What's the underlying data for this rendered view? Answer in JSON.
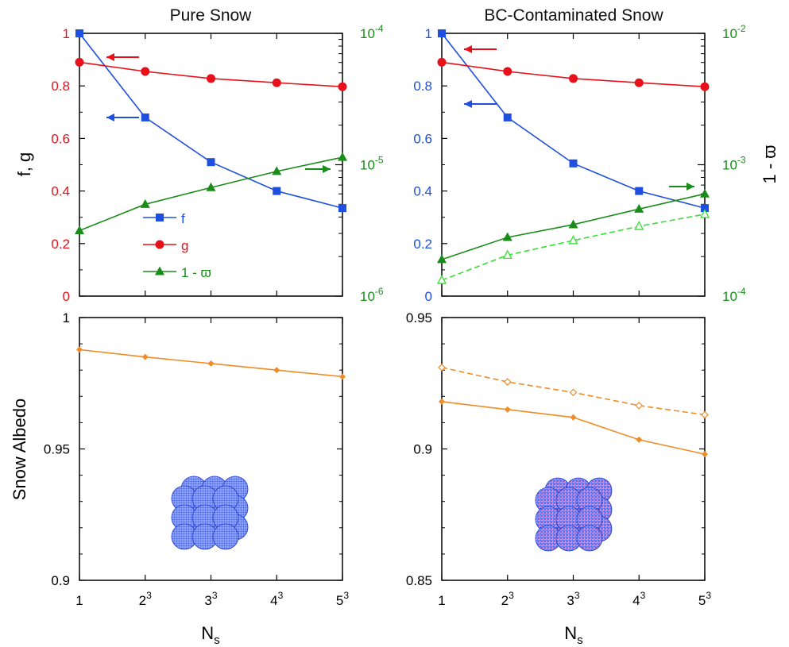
{
  "colors": {
    "f": "#1f4fe0",
    "g": "#e8101a",
    "omega": "#1a8c1a",
    "omega_light": "#33e033",
    "albedo": "#f08c28",
    "axis": "#000000"
  },
  "x_axis": {
    "label_main": "N",
    "label_sub": "s",
    "ticks": [
      {
        "base": "1",
        "exp": ""
      },
      {
        "base": "2",
        "exp": "3"
      },
      {
        "base": "3",
        "exp": "3"
      },
      {
        "base": "4",
        "exp": "3"
      },
      {
        "base": "5",
        "exp": "3"
      }
    ]
  },
  "chart_data": [
    {
      "type": "line",
      "title": "Pure Snow",
      "ylabel": "f, g",
      "ylim": [
        0,
        1
      ],
      "yticks": [
        "0",
        "0.2",
        "0.4",
        "0.6",
        "0.8",
        "1"
      ],
      "y2_scale": "log",
      "y2lim": [
        1e-06,
        0.0001
      ],
      "y2ticks": [
        {
          "base": "10",
          "exp": "-6"
        },
        {
          "base": "10",
          "exp": "-5"
        },
        {
          "base": "10",
          "exp": "-4"
        }
      ],
      "x": [
        1,
        2,
        3,
        4,
        5
      ],
      "series": [
        {
          "name": "f",
          "axis": "left",
          "marker": "square",
          "color_key": "f",
          "values": [
            1.0,
            0.68,
            0.51,
            0.4,
            0.335
          ]
        },
        {
          "name": "g",
          "axis": "left",
          "marker": "circle",
          "color_key": "g",
          "values": [
            0.89,
            0.855,
            0.828,
            0.812,
            0.797
          ]
        },
        {
          "name": "1 - ϖ",
          "axis": "right",
          "marker": "triangle",
          "color_key": "omega",
          "values": [
            3.15e-06,
            5e-06,
            6.7e-06,
            8.9e-06,
            1.14e-05
          ]
        }
      ],
      "legend": {
        "placement": "bottom-left",
        "items": [
          "f",
          "g",
          "1 - ϖ"
        ]
      },
      "annotations": [
        "arrow-left-g",
        "arrow-left-f",
        "arrow-right-omega"
      ]
    },
    {
      "type": "line",
      "title": "BC-Contaminated Snow",
      "ylabel": "1 - ϖ",
      "ylim": [
        0,
        1
      ],
      "yticks": [
        "0",
        "0.2",
        "0.4",
        "0.6",
        "0.8",
        "1"
      ],
      "y2_scale": "log",
      "y2lim": [
        0.0001,
        0.01
      ],
      "y2ticks": [
        {
          "base": "10",
          "exp": "-4"
        },
        {
          "base": "10",
          "exp": "-3"
        },
        {
          "base": "10",
          "exp": "-2"
        }
      ],
      "x": [
        1,
        2,
        3,
        4,
        5
      ],
      "series": [
        {
          "axis": "left",
          "marker": "square",
          "color_key": "f",
          "values": [
            1.0,
            0.68,
            0.505,
            0.4,
            0.335
          ]
        },
        {
          "axis": "left",
          "marker": "circle",
          "color_key": "g",
          "values": [
            0.89,
            0.855,
            0.828,
            0.812,
            0.797
          ]
        },
        {
          "axis": "right",
          "marker": "triangle",
          "color_key": "omega",
          "values": [
            0.00019,
            0.00028,
            0.00035,
            0.00046,
            0.0006
          ]
        },
        {
          "axis": "right",
          "marker": "triangle-open",
          "dashed": true,
          "color_key": "omega_light",
          "values": [
            0.000132,
            0.000205,
            0.000265,
            0.00034,
            0.00042
          ]
        }
      ],
      "annotations": [
        "arrow-left-g",
        "arrow-left-f",
        "arrow-right-omega"
      ]
    },
    {
      "type": "line",
      "title": "",
      "ylabel": "Snow Albedo",
      "ylim": [
        0.9,
        1
      ],
      "yticks": [
        "0.9",
        "0.95",
        "1"
      ],
      "x": [
        1,
        2,
        3,
        4,
        5
      ],
      "series": [
        {
          "marker": "diamond",
          "color_key": "albedo",
          "values": [
            0.9878,
            0.985,
            0.9825,
            0.98,
            0.9775
          ]
        }
      ],
      "inset": "packed-sphere-cluster"
    },
    {
      "type": "line",
      "title": "",
      "ylabel": "",
      "ylim": [
        0.85,
        0.95
      ],
      "yticks": [
        "0.85",
        "0.9",
        "0.95"
      ],
      "x": [
        1,
        2,
        3,
        4,
        5
      ],
      "series": [
        {
          "marker": "diamond",
          "color_key": "albedo",
          "values": [
            0.918,
            0.915,
            0.912,
            0.9035,
            0.898
          ]
        },
        {
          "marker": "diamond-open",
          "dashed": true,
          "color_key": "albedo",
          "values": [
            0.931,
            0.9255,
            0.9215,
            0.9165,
            0.913
          ]
        }
      ],
      "inset": "bc-contaminated-sphere-cluster"
    }
  ]
}
